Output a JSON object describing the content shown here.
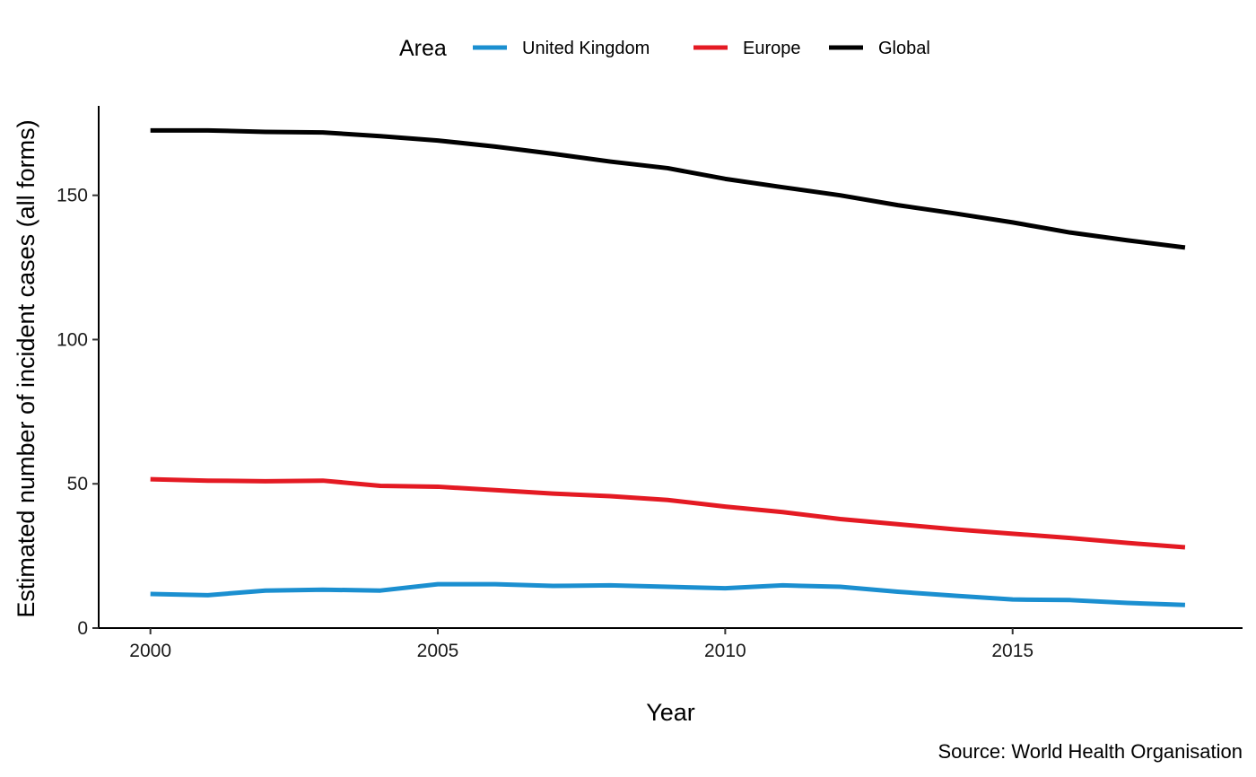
{
  "chart_data": {
    "type": "line",
    "title": "",
    "xlabel": "Year",
    "ylabel": "Estimated number of incident cases (all forms)",
    "caption": "Source: World Health Organisation",
    "x": [
      2000,
      2001,
      2002,
      2003,
      2004,
      2005,
      2006,
      2007,
      2008,
      2009,
      2010,
      2011,
      2012,
      2013,
      2014,
      2015,
      2016,
      2017,
      2018
    ],
    "xlim": [
      1999.1,
      2019.0
    ],
    "ylim": [
      0,
      181
    ],
    "x_ticks": [
      2000,
      2005,
      2010,
      2015
    ],
    "y_ticks": [
      0,
      50,
      100,
      150
    ],
    "grid": false,
    "legend": {
      "title": "Area",
      "position": "top"
    },
    "series": [
      {
        "name": "United Kingdom",
        "color": "#1b8fd0",
        "values": [
          11.8,
          11.4,
          13.0,
          13.3,
          13.0,
          15.2,
          15.2,
          14.6,
          14.8,
          14.3,
          13.8,
          14.8,
          14.3,
          12.6,
          11.2,
          9.9,
          9.7,
          8.7,
          8.0
        ]
      },
      {
        "name": "Europe",
        "color": "#e41a23",
        "values": [
          51.6,
          51.1,
          50.9,
          51.1,
          49.3,
          49.0,
          47.8,
          46.6,
          45.7,
          44.4,
          42.1,
          40.2,
          37.8,
          36.0,
          34.2,
          32.7,
          31.2,
          29.5,
          28.0
        ]
      },
      {
        "name": "Global",
        "color": "#000000",
        "values": [
          172.5,
          172.5,
          172.0,
          171.8,
          170.5,
          169.0,
          166.9,
          164.4,
          161.7,
          159.4,
          155.7,
          152.8,
          150.0,
          146.6,
          143.7,
          140.6,
          137.1,
          134.4,
          131.9
        ]
      }
    ]
  }
}
